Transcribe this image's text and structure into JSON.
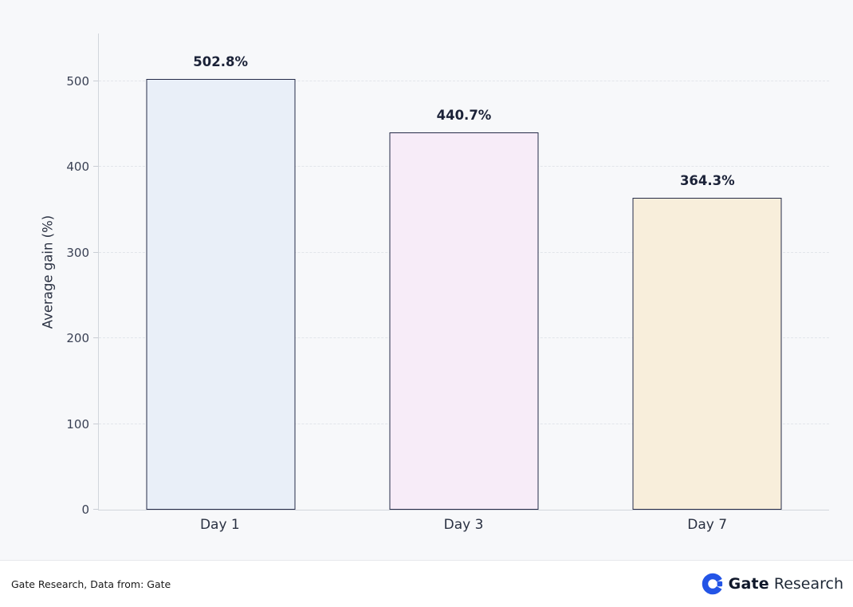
{
  "chart_data": {
    "type": "bar",
    "categories": [
      "Day 1",
      "Day 3",
      "Day 7"
    ],
    "values": [
      502.8,
      440.7,
      364.3
    ],
    "value_labels": [
      "502.8%",
      "440.7%",
      "364.3%"
    ],
    "title": "",
    "xlabel": "",
    "ylabel": "Average gain (%)",
    "ylim": [
      0,
      557
    ],
    "yticks": [
      0,
      100,
      200,
      300,
      400,
      500
    ],
    "grid": "dashed horizontal",
    "legend": "none",
    "bar_colors": [
      "#e9eff8",
      "#f7ecf8",
      "#f8eedb"
    ],
    "bar_border_color": "#252b48"
  },
  "footer": {
    "source_text": "Gate Research, Data from: Gate",
    "brand_bold": "Gate",
    "brand_regular": "Research"
  },
  "colors": {
    "page_background": "#f7f8fa",
    "footer_background": "#ffffff",
    "axis": "#d2d6dc",
    "gridline": "#e2e5ea",
    "text_dark": "#1b2238",
    "brand_blue": "#2354e6"
  }
}
